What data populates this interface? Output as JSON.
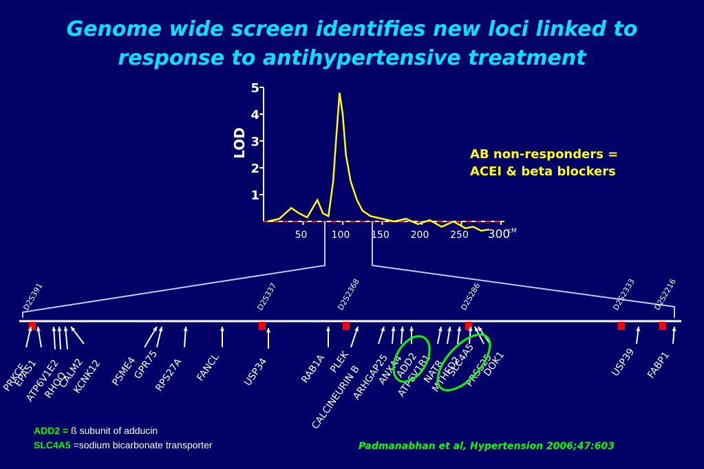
{
  "title": {
    "line1": "Genome wide screen identifies new loci linked to",
    "line2": "response to antihypertensive treatment"
  },
  "chart_data": {
    "type": "line",
    "ylabel": "LOD",
    "y_ticks": [
      "1",
      "2",
      "3",
      "4",
      "5"
    ],
    "ylim": [
      0,
      5
    ],
    "x_ticks": [
      "50",
      "100",
      "150",
      "200",
      "250",
      "300"
    ],
    "x_unit": "cM",
    "xlim": [
      0,
      300
    ],
    "series": [
      {
        "color": "#ffff00",
        "x": [
          5,
          20,
          35,
          45,
          55,
          62,
          68,
          75,
          82,
          88,
          92,
          96,
          100,
          104,
          110,
          118,
          125,
          135,
          150,
          165,
          180,
          195,
          210,
          225,
          240,
          255,
          265,
          275,
          285
        ],
        "y": [
          0.0,
          0.1,
          0.5,
          0.3,
          0.15,
          0.5,
          0.8,
          0.3,
          0.2,
          1.5,
          3.2,
          4.8,
          4.0,
          2.5,
          1.5,
          0.8,
          0.4,
          0.2,
          0.1,
          0.0,
          0.1,
          -0.1,
          0.05,
          -0.2,
          0.0,
          -0.25,
          -0.2,
          -0.35,
          -0.3
        ]
      }
    ],
    "grid": false
  },
  "ab_note": {
    "line1": "AB non-responders =",
    "line2": "ACEI & beta blockers"
  },
  "markers": [
    {
      "label": "D2S391"
    },
    {
      "label": "D2S337"
    },
    {
      "label": "D2S2368"
    },
    {
      "label": "D2S286"
    },
    {
      "label": "D2S2333"
    },
    {
      "label": "D2S2216"
    }
  ],
  "genes": [
    {
      "label": "PRKCE"
    },
    {
      "label": "EPAS1"
    },
    {
      "label": "ATP6V1E2"
    },
    {
      "label": "RHOQ"
    },
    {
      "label": "CALM2"
    },
    {
      "label": "KCNK12"
    },
    {
      "label": "PSME4"
    },
    {
      "label": "GPR75"
    },
    {
      "label": "RPS27A"
    },
    {
      "label": "FANCL"
    },
    {
      "label": "USP34"
    },
    {
      "label": "RAB1A"
    },
    {
      "label": "PLEK"
    },
    {
      "label": "CALCINEURIN B"
    },
    {
      "label": "ARHGAP25"
    },
    {
      "label": "ANXA4"
    },
    {
      "label": "ADD2"
    },
    {
      "label": "ATP6V1B1"
    },
    {
      "label": "NAT8"
    },
    {
      "label": "MTHFD2"
    },
    {
      "label": "SLC4A5"
    },
    {
      "label": "PRSS25"
    },
    {
      "label": "DOK1"
    },
    {
      "label": "USP39"
    },
    {
      "label": "FABP1"
    }
  ],
  "legend": {
    "add2_key": "ADD2 =",
    "add2_desc": " ß subunit of adducin",
    "slc4a5_key": "SLC4A5",
    "slc4a5_desc": " =sodium bicarbonate transporter"
  },
  "citation": "Padmanabhan et al, Hypertension 2006;47:603",
  "colors": {
    "background": "#000066",
    "title": "#00e5ff",
    "curve": "#ffff00",
    "marker": "#ff0000",
    "highlight": "#00ff00",
    "axis": "#ffffff"
  }
}
